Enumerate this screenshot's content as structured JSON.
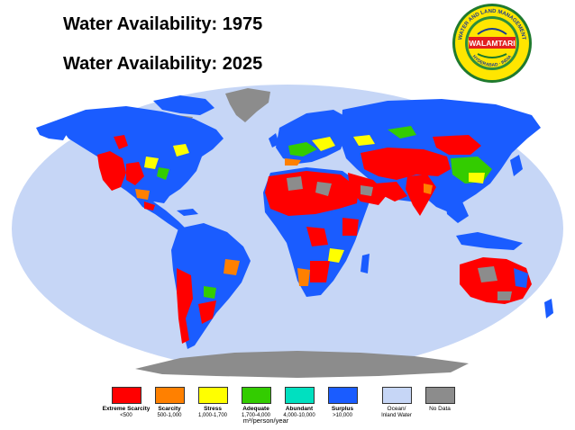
{
  "titles": {
    "line1": "Water Availability: 1975",
    "line2": "Water Availability: 2025"
  },
  "logo": {
    "name": "WALAMTARI",
    "ring_text": "WATER AND LAND MANAGEMENT TRAINING AND RESEARCH INSTITUTE",
    "city": "HYDERABAD",
    "country": "INDIA"
  },
  "legend": {
    "items": [
      {
        "label": "Extreme Scarcity",
        "range": "<500",
        "color": "#ff0000"
      },
      {
        "label": "Scarcity",
        "range": "500-1,000",
        "color": "#ff8000"
      },
      {
        "label": "Stress",
        "range": "1,000-1,700",
        "color": "#ffff00"
      },
      {
        "label": "Adequate",
        "range": "1,700-4,000",
        "color": "#33cc00"
      },
      {
        "label": "Abundant",
        "range": "4,000-10,000",
        "color": "#00e0c0"
      },
      {
        "label": "Surplus",
        "range": ">10,000",
        "color": "#1a5cff"
      },
      {
        "label": "Ocean/",
        "range": "Inland Water",
        "color": "#c6d6f6"
      },
      {
        "label": "No Data",
        "range": "",
        "color": "#8c8c8c"
      }
    ],
    "unit": "m³/person/year"
  }
}
